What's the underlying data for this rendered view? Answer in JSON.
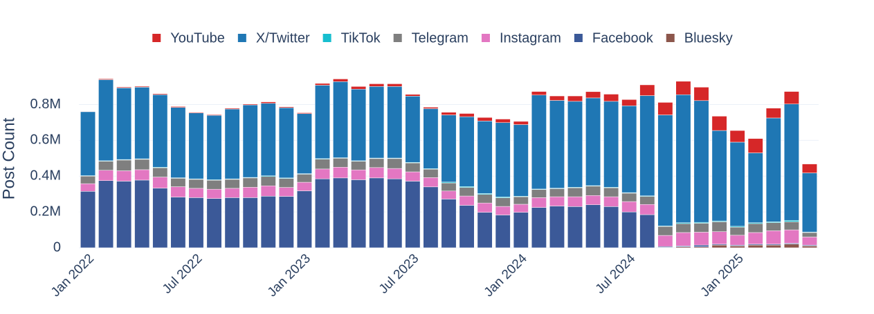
{
  "chart_data": {
    "type": "stacked_bar",
    "y_label": "Post Count",
    "x": [
      "2022-01",
      "2022-02",
      "2022-03",
      "2022-04",
      "2022-05",
      "2022-06",
      "2022-07",
      "2022-08",
      "2022-09",
      "2022-10",
      "2022-11",
      "2022-12",
      "2023-01",
      "2023-02",
      "2023-03",
      "2023-04",
      "2023-05",
      "2023-06",
      "2023-07",
      "2023-08",
      "2023-09",
      "2023-10",
      "2023-11",
      "2023-12",
      "2024-01",
      "2024-02",
      "2024-03",
      "2024-04",
      "2024-05",
      "2024-06",
      "2024-07",
      "2024-08",
      "2024-09",
      "2024-10",
      "2024-11",
      "2024-12",
      "2025-01",
      "2025-02",
      "2025-03",
      "2025-04",
      "2025-05"
    ],
    "xticks": [
      {
        "value": "2022-01",
        "label": "Jan 2022"
      },
      {
        "value": "2022-07",
        "label": "Jul 2022"
      },
      {
        "value": "2023-01",
        "label": "Jan 2023"
      },
      {
        "value": "2023-07",
        "label": "Jul 2023"
      },
      {
        "value": "2024-01",
        "label": "Jan 2024"
      },
      {
        "value": "2024-07",
        "label": "Jul 2024"
      },
      {
        "value": "2025-01",
        "label": "Jan 2025"
      }
    ],
    "ylim": [
      0,
      960000
    ],
    "yticks": [
      0,
      {
        "value": 200000,
        "label": "0.2M"
      },
      {
        "value": 400000,
        "label": "0.4M"
      },
      {
        "value": 600000,
        "label": "0.6M"
      },
      {
        "value": 800000,
        "label": "0.8M"
      }
    ],
    "grid": true,
    "legend": "top",
    "series": [
      {
        "name": "Bluesky",
        "color": "#8c564b",
        "values": [
          0,
          0,
          0,
          0,
          0,
          0,
          0,
          0,
          0,
          0,
          0,
          0,
          0,
          0,
          0,
          0,
          0,
          0,
          0,
          0,
          0,
          0,
          0,
          0,
          0,
          0,
          0,
          0,
          0,
          0,
          0,
          0,
          2000,
          5000,
          5000,
          15000,
          10000,
          15000,
          15000,
          20000,
          10000
        ]
      },
      {
        "name": "Facebook",
        "color": "#3b5998",
        "values": [
          315000,
          375000,
          372000,
          378000,
          333000,
          283000,
          280000,
          275000,
          280000,
          280000,
          288000,
          287000,
          318000,
          385000,
          390000,
          380000,
          390000,
          385000,
          372000,
          340000,
          272000,
          237000,
          198000,
          183000,
          198000,
          225000,
          233000,
          230000,
          240000,
          230000,
          200000,
          185000,
          5000,
          5000,
          10000,
          5000,
          5000,
          5000,
          5000,
          5000,
          5000
        ]
      },
      {
        "name": "Instagram",
        "color": "#e377c2",
        "values": [
          43000,
          58000,
          58000,
          58000,
          62000,
          58000,
          52000,
          52000,
          52000,
          58000,
          58000,
          50000,
          48000,
          55000,
          60000,
          55000,
          58000,
          58000,
          52000,
          52000,
          45000,
          52000,
          52000,
          48000,
          45000,
          55000,
          52000,
          55000,
          52000,
          55000,
          58000,
          57000,
          62000,
          75000,
          72000,
          70000,
          55000,
          65000,
          75000,
          75000,
          45000
        ]
      },
      {
        "name": "Telegram",
        "color": "#7f7f7f",
        "values": [
          42000,
          50000,
          60000,
          58000,
          52000,
          47000,
          50000,
          50000,
          50000,
          52000,
          52000,
          50000,
          45000,
          55000,
          50000,
          48000,
          50000,
          55000,
          50000,
          47000,
          45000,
          48000,
          48000,
          48000,
          42000,
          45000,
          45000,
          50000,
          52000,
          50000,
          47000,
          45000,
          50000,
          50000,
          50000,
          55000,
          45000,
          50000,
          45000,
          45000,
          25000
        ]
      },
      {
        "name": "TikTok",
        "color": "#17becf",
        "values": [
          3000,
          3000,
          3000,
          3000,
          3000,
          3000,
          3000,
          3000,
          3000,
          3000,
          4000,
          3000,
          3000,
          3000,
          3000,
          3000,
          3000,
          3000,
          3000,
          3000,
          5000,
          5000,
          5000,
          5000,
          3000,
          3000,
          3000,
          3000,
          3000,
          3000,
          3000,
          3000,
          3000,
          5000,
          5000,
          5000,
          5000,
          5000,
          5000,
          8000,
          3000
        ]
      },
      {
        "name": "X/Twitter",
        "color": "#1f77b4",
        "values": [
          357000,
          453000,
          400000,
          400000,
          405000,
          393000,
          368000,
          360000,
          390000,
          405000,
          405000,
          392000,
          335000,
          410000,
          425000,
          400000,
          400000,
          400000,
          370000,
          335000,
          375000,
          390000,
          405000,
          415000,
          400000,
          525000,
          490000,
          480000,
          490000,
          480000,
          485000,
          560000,
          620000,
          715000,
          680000,
          505000,
          470000,
          390000,
          580000,
          650000,
          330000
        ]
      },
      {
        "name": "YouTube",
        "color": "#d62728",
        "values": [
          2000,
          5000,
          5000,
          5000,
          5000,
          5000,
          4000,
          4000,
          5000,
          5000,
          8000,
          5000,
          5000,
          10000,
          15000,
          15000,
          15000,
          15000,
          10000,
          8000,
          15000,
          18000,
          20000,
          20000,
          18000,
          20000,
          25000,
          30000,
          35000,
          40000,
          35000,
          60000,
          70000,
          75000,
          75000,
          80000,
          65000,
          80000,
          55000,
          70000,
          50000
        ]
      }
    ]
  }
}
